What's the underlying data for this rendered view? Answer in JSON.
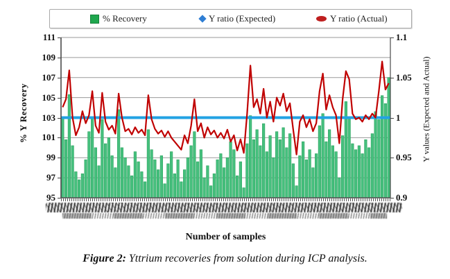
{
  "legend": {
    "items": [
      {
        "label": "% Recovery",
        "marker": "square",
        "color": "#1fa74e"
      },
      {
        "label": "Y ratio (Expected)",
        "marker": "diamond",
        "color": "#2f7ed4"
      },
      {
        "label": "Y ratio (Actual)",
        "marker": "oval",
        "color": "#bf1f1f"
      }
    ]
  },
  "left_axis": {
    "title": "% Y Recovery",
    "ticks": [
      111,
      109,
      107,
      105,
      103,
      101,
      99,
      97,
      95
    ],
    "min": 95,
    "max": 111
  },
  "right_axis": {
    "title": "Y values (Expected and Actual)",
    "ticks": [
      "1.1",
      "1.05",
      "1",
      "0.95",
      "0.9"
    ],
    "tick_values": [
      1.1,
      1.05,
      1.0,
      0.95,
      0.9
    ],
    "min": 0.9,
    "max": 1.1
  },
  "x_axis": {
    "title": "Number of samples",
    "tick_labels_legible": false,
    "tick_labels_note": "dense rotated sample names, illegible at this resolution"
  },
  "caption": {
    "prefix": "Figure 2:",
    "text": " Yttrium recoveries from solution during ICP analysis."
  },
  "colors": {
    "bar_fill": "#46c07e",
    "bar_stroke": "#28a35d",
    "expected_line": "#22a2e3",
    "actual_line": "#c00000",
    "gridline": "#9a9a9a",
    "axis_line": "#4a4a4a"
  },
  "chart_data": {
    "type": "bar",
    "subtype": "combo-bar-line",
    "title": "",
    "xlabel": "Number of samples",
    "ylabel_left": "% Y Recovery",
    "ylabel_right": "Y values (Expected and Actual)",
    "ylim_left": [
      95,
      111
    ],
    "ylim_right": [
      0.9,
      1.1
    ],
    "grid": "horizontal",
    "legend_position": "top",
    "x_count": 100,
    "series": [
      {
        "name": "% Recovery",
        "type": "bar",
        "axis": "left",
        "values": [
          102.9,
          100.8,
          105.3,
          100.2,
          97.6,
          96.8,
          97.4,
          98.8,
          101.6,
          102.9,
          100.0,
          98.2,
          102.8,
          100.4,
          101.0,
          99.2,
          98.0,
          103.8,
          100.0,
          99.0,
          98.2,
          97.2,
          99.6,
          98.6,
          97.6,
          96.6,
          101.8,
          99.8,
          98.8,
          97.8,
          99.2,
          96.4,
          98.4,
          99.6,
          97.4,
          98.8,
          96.6,
          97.8,
          99.0,
          100.2,
          101.6,
          98.6,
          99.8,
          97.0,
          98.2,
          96.2,
          97.4,
          98.8,
          99.4,
          98.0,
          99.0,
          100.6,
          99.8,
          97.2,
          98.6,
          96.0,
          100.4,
          103.2,
          100.8,
          101.8,
          100.2,
          102.4,
          99.6,
          101.2,
          99.0,
          101.6,
          100.8,
          102.0,
          100.0,
          101.4,
          98.4,
          96.2,
          99.2,
          100.6,
          98.8,
          99.8,
          98.0,
          99.4,
          102.2,
          103.4,
          100.6,
          101.8,
          100.2,
          99.6,
          97.0,
          101.2,
          104.6,
          103.0,
          100.4,
          99.8,
          100.2,
          99.4,
          100.8,
          100.0,
          101.4,
          103.6,
          102.8,
          105.2,
          104.4,
          107.0
        ]
      },
      {
        "name": "Y ratio (Expected)",
        "type": "line",
        "axis": "right",
        "constant": 1.0
      },
      {
        "name": "Y ratio (Actual)",
        "type": "line",
        "axis": "right",
        "values": [
          1.013,
          1.023,
          1.059,
          1.0,
          0.978,
          0.988,
          1.008,
          0.993,
          1.003,
          1.033,
          0.99,
          0.981,
          1.031,
          0.995,
          0.985,
          0.99,
          0.98,
          1.03,
          1.0,
          0.983,
          0.986,
          0.979,
          0.988,
          0.981,
          0.985,
          0.978,
          1.028,
          0.998,
          0.986,
          0.98,
          0.984,
          0.976,
          0.983,
          0.975,
          0.97,
          0.965,
          0.96,
          0.978,
          0.968,
          0.99,
          1.023,
          0.983,
          0.993,
          0.975,
          0.988,
          0.979,
          0.984,
          0.975,
          0.981,
          0.974,
          0.985,
          0.97,
          0.978,
          0.959,
          0.973,
          0.956,
          1.005,
          1.065,
          1.013,
          1.023,
          1.005,
          1.036,
          1.0,
          1.02,
          0.995,
          1.025,
          1.015,
          1.03,
          1.008,
          1.018,
          0.985,
          0.954,
          0.995,
          1.003,
          0.988,
          0.998,
          0.983,
          0.993,
          1.033,
          1.055,
          1.01,
          1.028,
          1.013,
          1.003,
          0.968,
          1.023,
          1.058,
          1.048,
          1.005,
          0.998,
          1.0,
          0.995,
          1.003,
          0.998,
          1.005,
          1.0,
          1.033,
          1.07,
          1.035,
          1.043
        ]
      }
    ]
  }
}
